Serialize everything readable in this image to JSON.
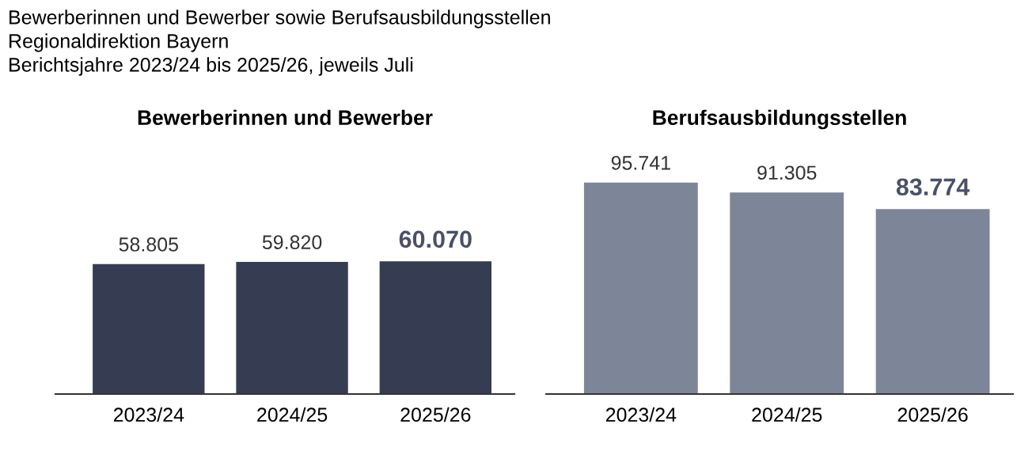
{
  "chart_data": [
    {
      "type": "bar",
      "title": "Bewerberinnen und Bewerber",
      "annotations": [
        "Bewerberinnen und Bewerber sowie Berufsausbildungsstellen",
        "Regionaldirektion Bayern",
        "Berichtsjahre 2023/24 bis 2025/26, jeweils Juli"
      ],
      "categories": [
        "2023/24",
        "2024/25",
        "2025/26"
      ],
      "values": [
        58805,
        59820,
        60070
      ],
      "value_labels": [
        "58.805",
        "59.820",
        "60.070"
      ],
      "color": "#363d52"
    },
    {
      "type": "bar",
      "title": "Berufsausbildungsstellen",
      "categories": [
        "2023/24",
        "2024/25",
        "2025/26"
      ],
      "values": [
        95741,
        91305,
        83774
      ],
      "value_labels": [
        "95.741",
        "91.305",
        "83.774"
      ],
      "color": "#7d8599"
    }
  ]
}
